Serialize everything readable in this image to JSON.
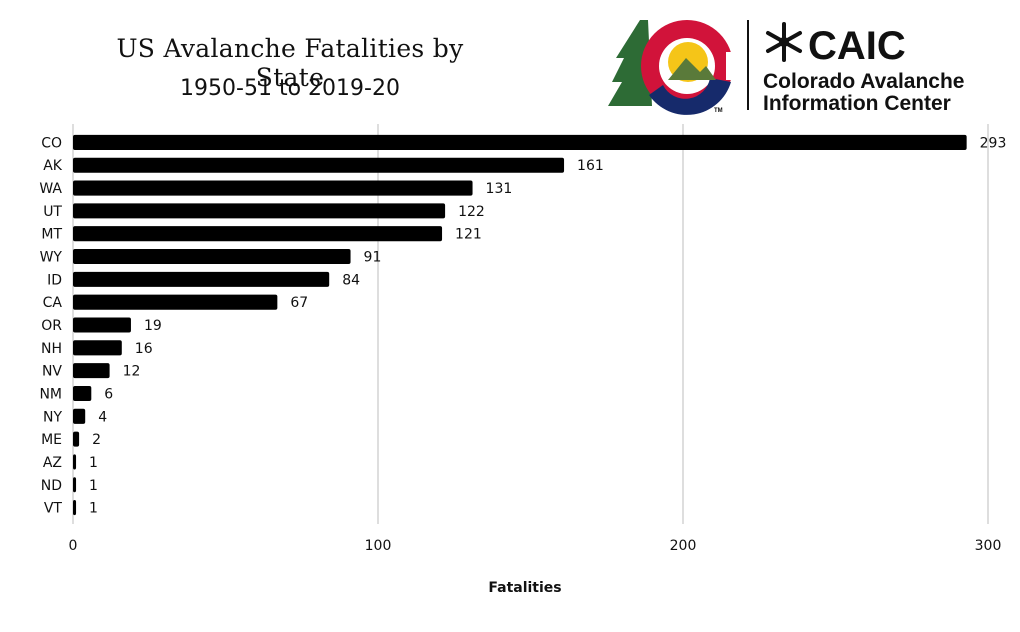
{
  "chart_data": {
    "type": "bar",
    "orientation": "horizontal",
    "title": "US Avalanche Fatalities by State",
    "subtitle": "1950-51 to 2019-20",
    "xlabel": "Fatalities",
    "ylabel": "",
    "xlim": [
      0,
      300
    ],
    "xticks": [
      0,
      100,
      200,
      300
    ],
    "grid": true,
    "categories": [
      "CO",
      "AK",
      "WA",
      "UT",
      "MT",
      "WY",
      "ID",
      "CA",
      "OR",
      "NH",
      "NV",
      "NM",
      "NY",
      "ME",
      "AZ",
      "ND",
      "VT"
    ],
    "values": [
      293,
      161,
      131,
      122,
      121,
      91,
      84,
      67,
      19,
      16,
      12,
      6,
      4,
      2,
      1,
      1,
      1
    ],
    "bar_color": "#000000"
  },
  "logo": {
    "acronym": "CAIC",
    "name_line1": "Colorado Avalanche",
    "name_line2": "Information Center",
    "trademark": "TM",
    "colors": {
      "tree": "#2d6b35",
      "red": "#d1133a",
      "gold": "#f5c518",
      "navy": "#162a6b",
      "mountain": "#5a7a3a"
    },
    "icon": "snowflake-icon"
  }
}
